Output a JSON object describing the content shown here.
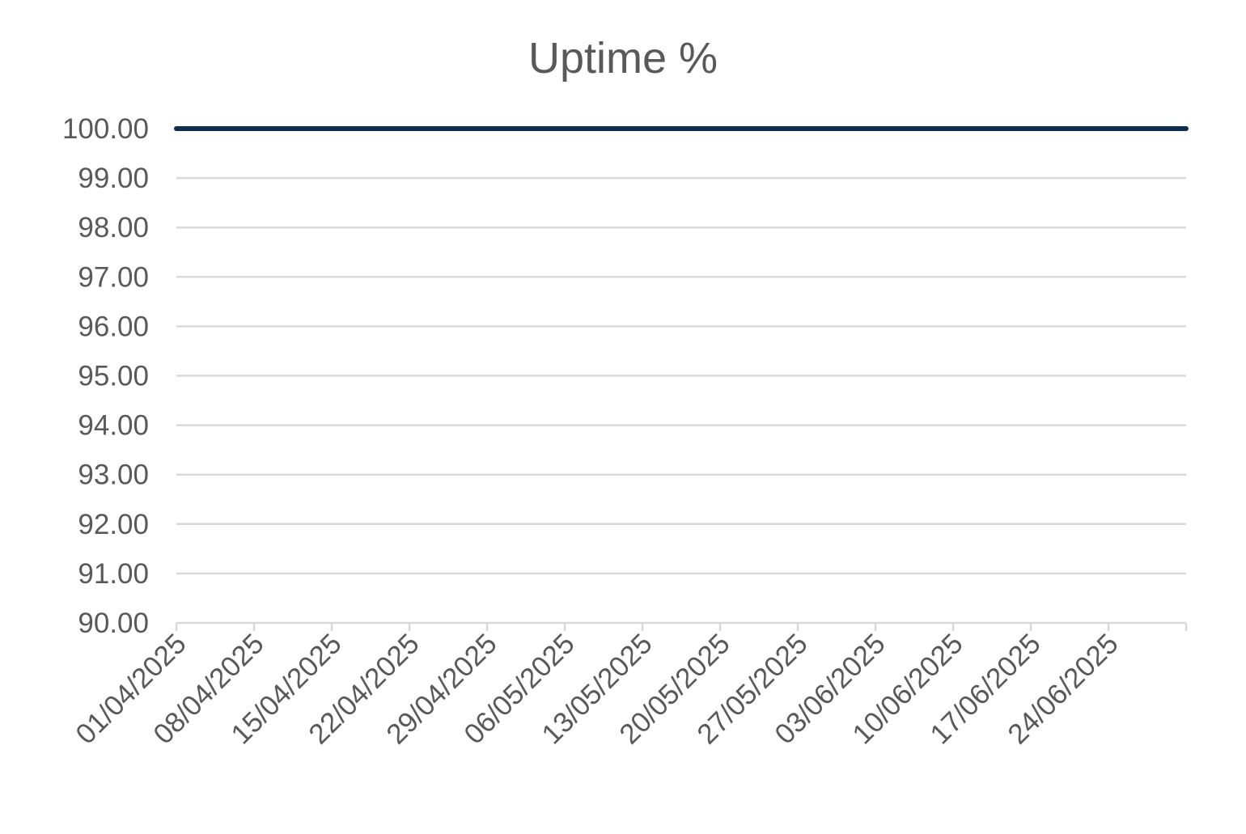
{
  "chart_data": {
    "type": "line",
    "title": "Uptime %",
    "xlabel": "",
    "ylabel": "",
    "ylim": [
      90,
      100
    ],
    "y_ticks": [
      "90.00",
      "91.00",
      "92.00",
      "93.00",
      "94.00",
      "95.00",
      "96.00",
      "97.00",
      "98.00",
      "99.00",
      "100.00"
    ],
    "x_range": [
      "01/04/2025",
      "30/06/2025"
    ],
    "x_tick_labels": [
      "01/04/2025",
      "08/04/2025",
      "15/04/2025",
      "22/04/2025",
      "29/04/2025",
      "06/05/2025",
      "13/05/2025",
      "20/05/2025",
      "27/05/2025",
      "03/06/2025",
      "10/06/2025",
      "17/06/2025",
      "24/06/2025"
    ],
    "grid": true,
    "legend": "none",
    "series": [
      {
        "color": "#0e2e4f",
        "points": [
          {
            "x": "01/04/2025",
            "y": 100
          },
          {
            "x": "30/06/2025",
            "y": 100
          }
        ]
      }
    ],
    "colors": {
      "series": "#0e2e4f",
      "grid": "#d9d9d9",
      "text": "#595959"
    }
  }
}
